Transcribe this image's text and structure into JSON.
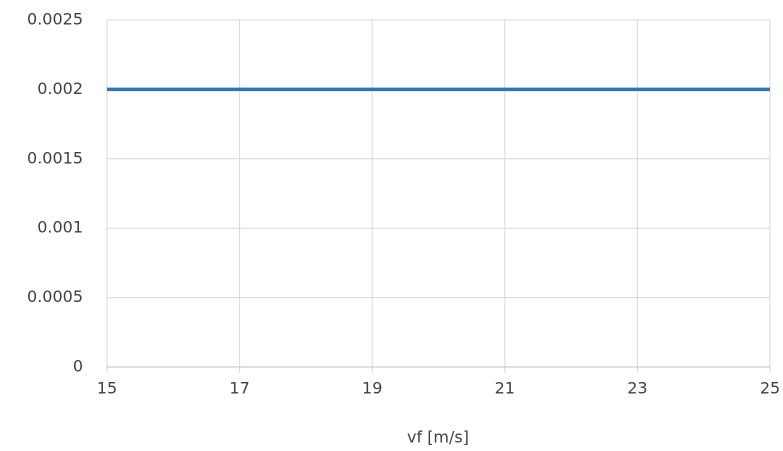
{
  "chart_data": {
    "type": "line",
    "x_label": "vf [m/s]",
    "x": [
      15,
      25
    ],
    "series": [
      {
        "name": "vf",
        "color": "#2e75b6",
        "values": [
          0.002,
          0.002
        ]
      }
    ],
    "xlim": [
      15,
      25
    ],
    "xticks": [
      15,
      17,
      19,
      21,
      23,
      25
    ],
    "ylim": [
      0,
      0.0025
    ],
    "yticks": [
      0,
      0.0005,
      0.001,
      0.0015,
      0.002,
      0.0025
    ],
    "grid": true
  }
}
